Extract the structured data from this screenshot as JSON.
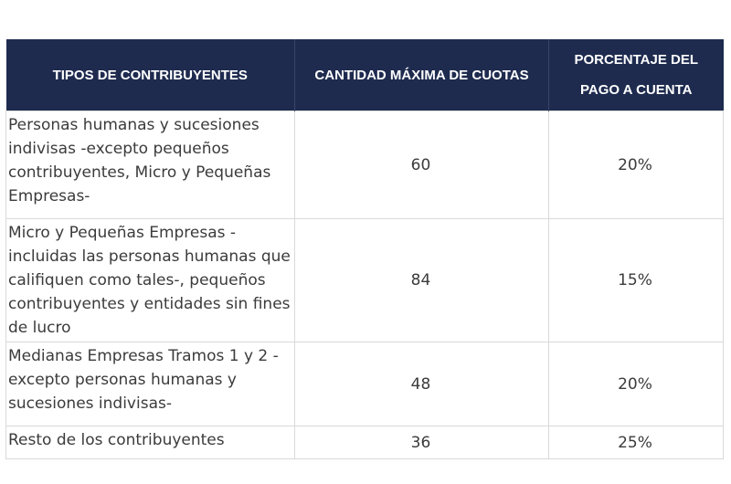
{
  "table": {
    "headers": [
      "TIPOS DE CONTRIBUYENTES",
      "CANTIDAD MÁXIMA DE CUOTAS",
      "PORCENTAJE DEL PAGO A CUENTA"
    ],
    "rows": [
      {
        "tipo": "Personas humanas y sucesiones indivisas -excepto pequeños contribuyentes, Micro y Pequeñas Empresas-",
        "cuotas": "60",
        "porcentaje": "20%"
      },
      {
        "tipo": "Micro y Pequeñas Empresas -incluidas las personas humanas que califiquen como tales-, pequeños contribuyentes y entidades sin fines de lucro",
        "cuotas": "84",
        "porcentaje": "15%"
      },
      {
        "tipo": "Medianas Empresas Tramos 1 y 2 -excepto personas humanas y sucesiones indivisas-",
        "cuotas": "48",
        "porcentaje": "20%"
      },
      {
        "tipo": "Resto de los contribuyentes",
        "cuotas": "36",
        "porcentaje": "25%"
      }
    ]
  },
  "colors": {
    "header_bg": "#1e2b4f",
    "header_text": "#ffffff",
    "body_text": "#3b3b3b",
    "border": "#d9d9d9"
  }
}
